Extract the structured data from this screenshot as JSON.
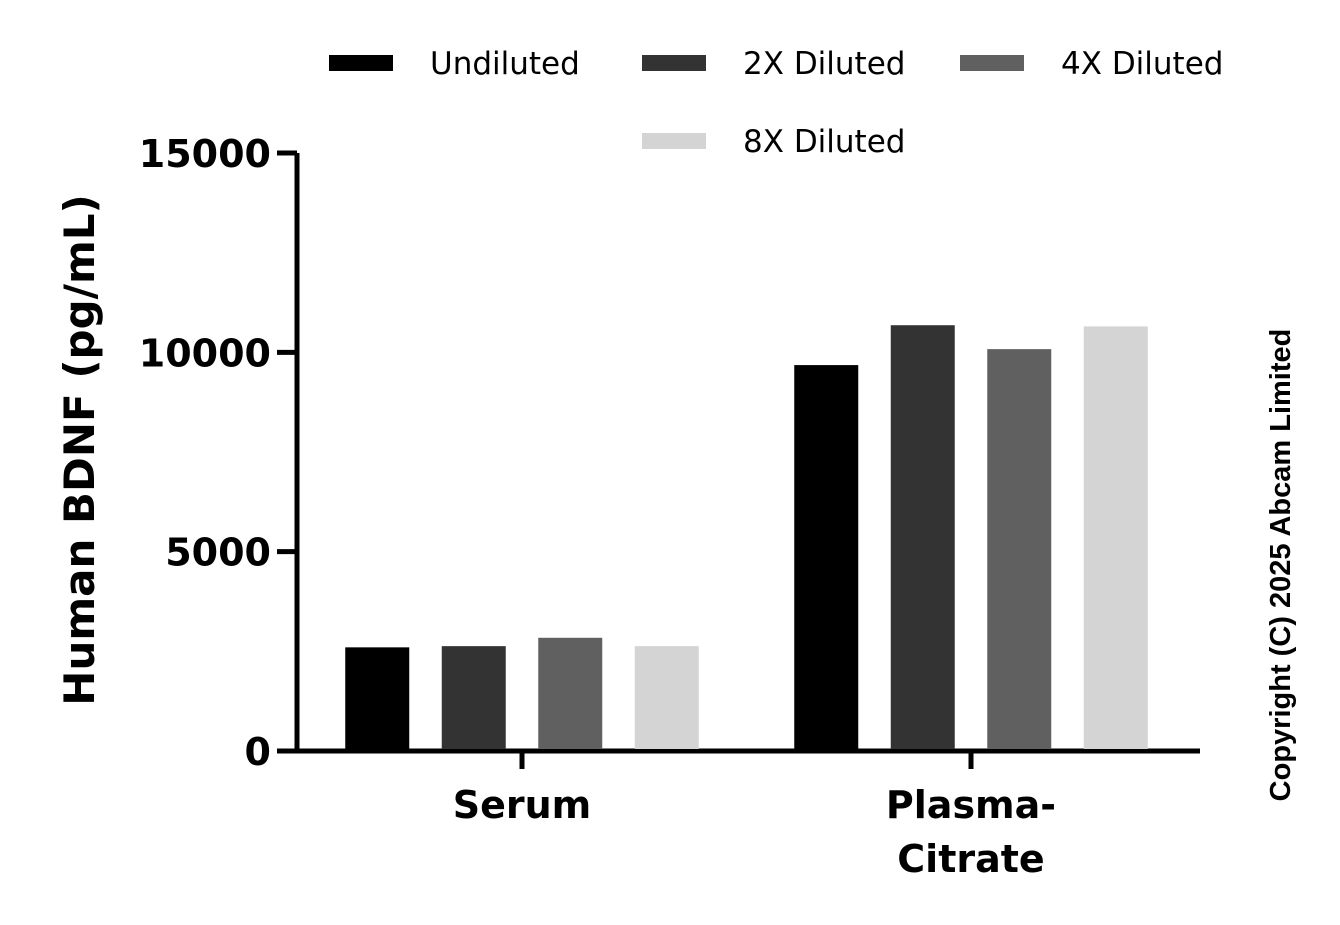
{
  "chart_data": {
    "type": "bar",
    "categories": [
      [
        "Serum"
      ],
      [
        "Plasma-",
        "Citrate"
      ]
    ],
    "series": [
      {
        "name": "Undiluted",
        "color": "#000000",
        "values": [
          2600,
          9680
        ]
      },
      {
        "name": "2X Diluted",
        "color": "#333333",
        "values": [
          2630,
          10680
        ]
      },
      {
        "name": "4X Diluted",
        "color": "#606060",
        "values": [
          2840,
          10080
        ]
      },
      {
        "name": "8X Diluted",
        "color": "#d4d4d4",
        "values": [
          2630,
          10650
        ]
      }
    ],
    "title": "",
    "xlabel": "",
    "ylabel": "Human BDNF (pg/mL)",
    "ylim": [
      0,
      15000
    ],
    "yticks": [
      0,
      5000,
      10000,
      15000
    ],
    "grid": false,
    "legend_position": "top"
  },
  "copyright": "Copyright (C) 2025 Abcam Limited"
}
